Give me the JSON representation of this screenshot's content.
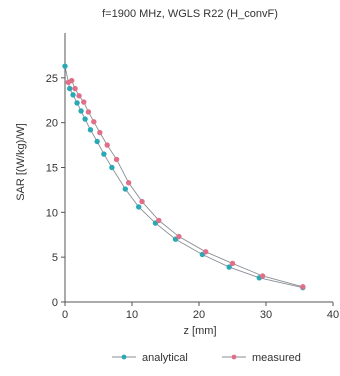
{
  "chart_data": {
    "type": "line",
    "title": "f=1900 MHz, WGLS R22 (H_convF)",
    "xlabel": "z [mm]",
    "ylabel": "SAR [(W/kg)/W]",
    "xlim": [
      0,
      40
    ],
    "ylim": [
      0,
      30
    ],
    "xticks": [
      "0",
      "10",
      "20",
      "30",
      "40"
    ],
    "yticks": [
      "0",
      "5",
      "10",
      "15",
      "20",
      "25"
    ],
    "grid": false,
    "legend_position": "bottom",
    "series": [
      {
        "name": "analytical",
        "color": "#2aa8b5",
        "x": [
          0,
          0.7,
          1.2,
          1.8,
          2.4,
          3.0,
          3.8,
          4.8,
          5.8,
          7.0,
          9.0,
          11.0,
          13.5,
          16.5,
          20.5,
          24.5,
          29.0,
          35.5
        ],
        "y": [
          26.3,
          23.8,
          23.1,
          22.2,
          21.3,
          20.4,
          19.2,
          17.9,
          16.5,
          15.0,
          12.6,
          10.6,
          8.8,
          7.0,
          5.3,
          3.9,
          2.7,
          1.6
        ]
      },
      {
        "name": "measured",
        "color": "#e0708a",
        "x": [
          0.5,
          1.0,
          1.5,
          2.1,
          2.8,
          3.5,
          4.3,
          5.2,
          6.3,
          7.7,
          9.5,
          11.5,
          14.0,
          17.0,
          21.0,
          25.0,
          29.5,
          35.5
        ],
        "y": [
          24.5,
          24.7,
          23.8,
          23.0,
          22.3,
          21.2,
          20.1,
          18.9,
          17.5,
          15.9,
          13.3,
          11.2,
          9.1,
          7.3,
          5.6,
          4.3,
          2.9,
          1.7
        ]
      }
    ]
  }
}
